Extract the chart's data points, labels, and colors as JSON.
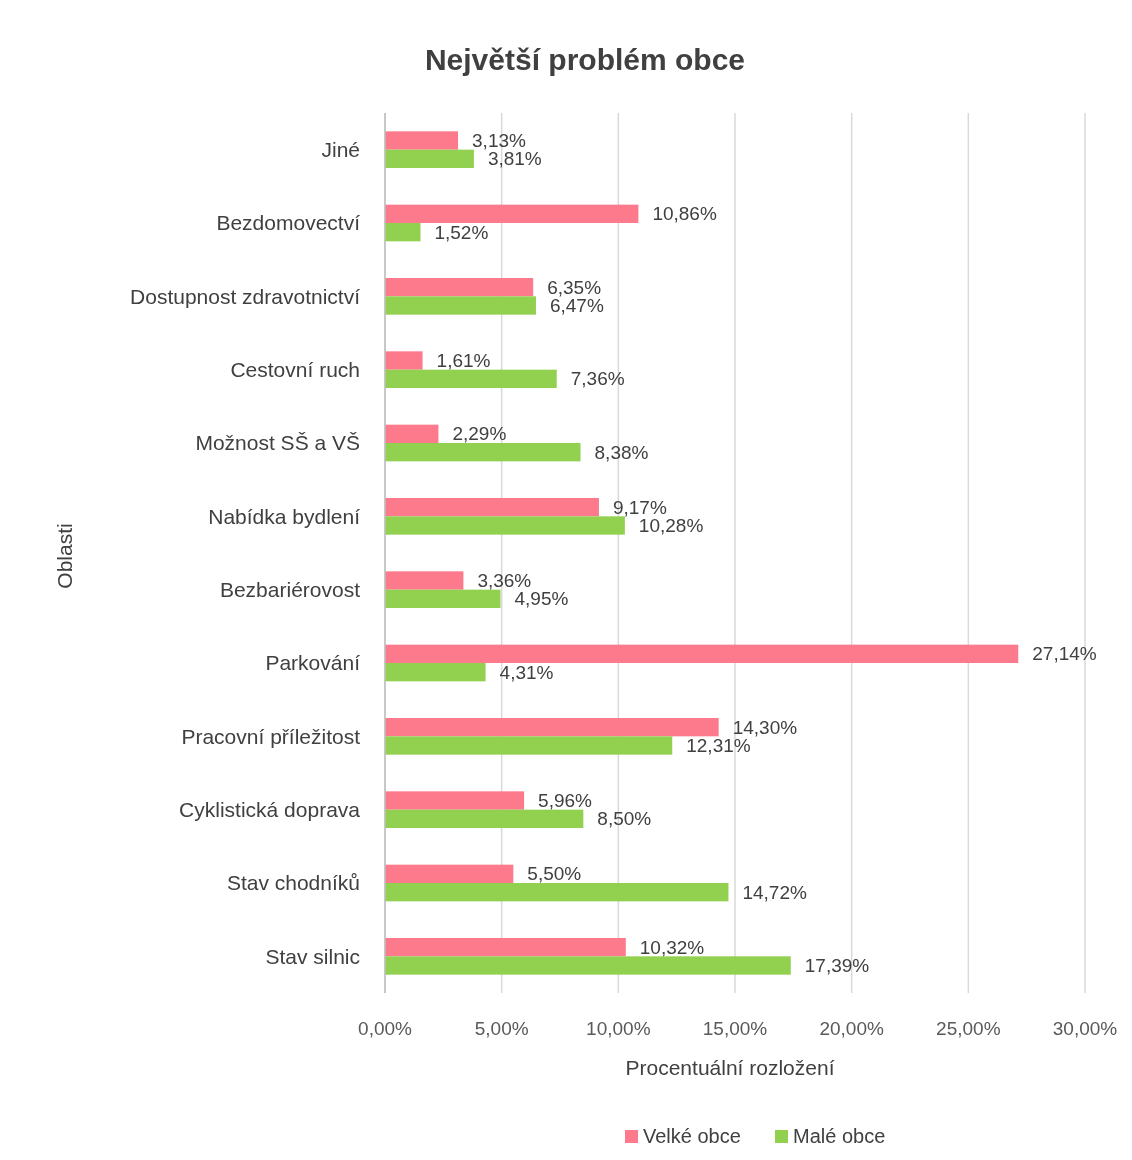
{
  "chart_data": {
    "type": "bar",
    "orientation": "horizontal",
    "title": "Největší problém obce",
    "xlabel": "Procentuální rozložení",
    "ylabel": "Oblasti",
    "categories": [
      "Jiné",
      "Bezdomovectví",
      "Dostupnost zdravotnictví",
      "Cestovní ruch",
      "Možnost SŠ a VŠ",
      "Nabídka bydlení",
      "Bezbariérovost",
      "Parkování",
      "Pracovní příležitost",
      "Cyklistická doprava",
      "Stav chodníků",
      "Stav silnic"
    ],
    "series": [
      {
        "name": "Velké obce",
        "color": "#fc7a8c",
        "values": [
          3.13,
          10.86,
          6.35,
          1.61,
          2.29,
          9.17,
          3.36,
          27.14,
          14.3,
          5.96,
          5.5,
          10.32
        ],
        "value_labels": [
          "3,13%",
          "10,86%",
          "6,35%",
          "1,61%",
          "2,29%",
          "9,17%",
          "3,36%",
          "27,14%",
          "14,30%",
          "5,96%",
          "5,50%",
          "10,32%"
        ]
      },
      {
        "name": "Malé obce",
        "color": "#92d050",
        "values": [
          3.81,
          1.52,
          6.47,
          7.36,
          8.38,
          10.28,
          4.95,
          4.31,
          12.31,
          8.5,
          14.72,
          17.39
        ],
        "value_labels": [
          "3,81%",
          "1,52%",
          "6,47%",
          "7,36%",
          "8,38%",
          "10,28%",
          "4,95%",
          "4,31%",
          "12,31%",
          "8,50%",
          "14,72%",
          "17,39%"
        ]
      }
    ],
    "xlim": [
      0,
      30
    ],
    "xticks": [
      {
        "value": 0,
        "label": "0,00%"
      },
      {
        "value": 5,
        "label": "5,00%"
      },
      {
        "value": 10,
        "label": "10,00%"
      },
      {
        "value": 15,
        "label": "15,00%"
      },
      {
        "value": 20,
        "label": "20,00%"
      },
      {
        "value": 25,
        "label": "25,00%"
      },
      {
        "value": 30,
        "label": "30,00%"
      }
    ],
    "grid": "x",
    "legend": "bottom"
  }
}
